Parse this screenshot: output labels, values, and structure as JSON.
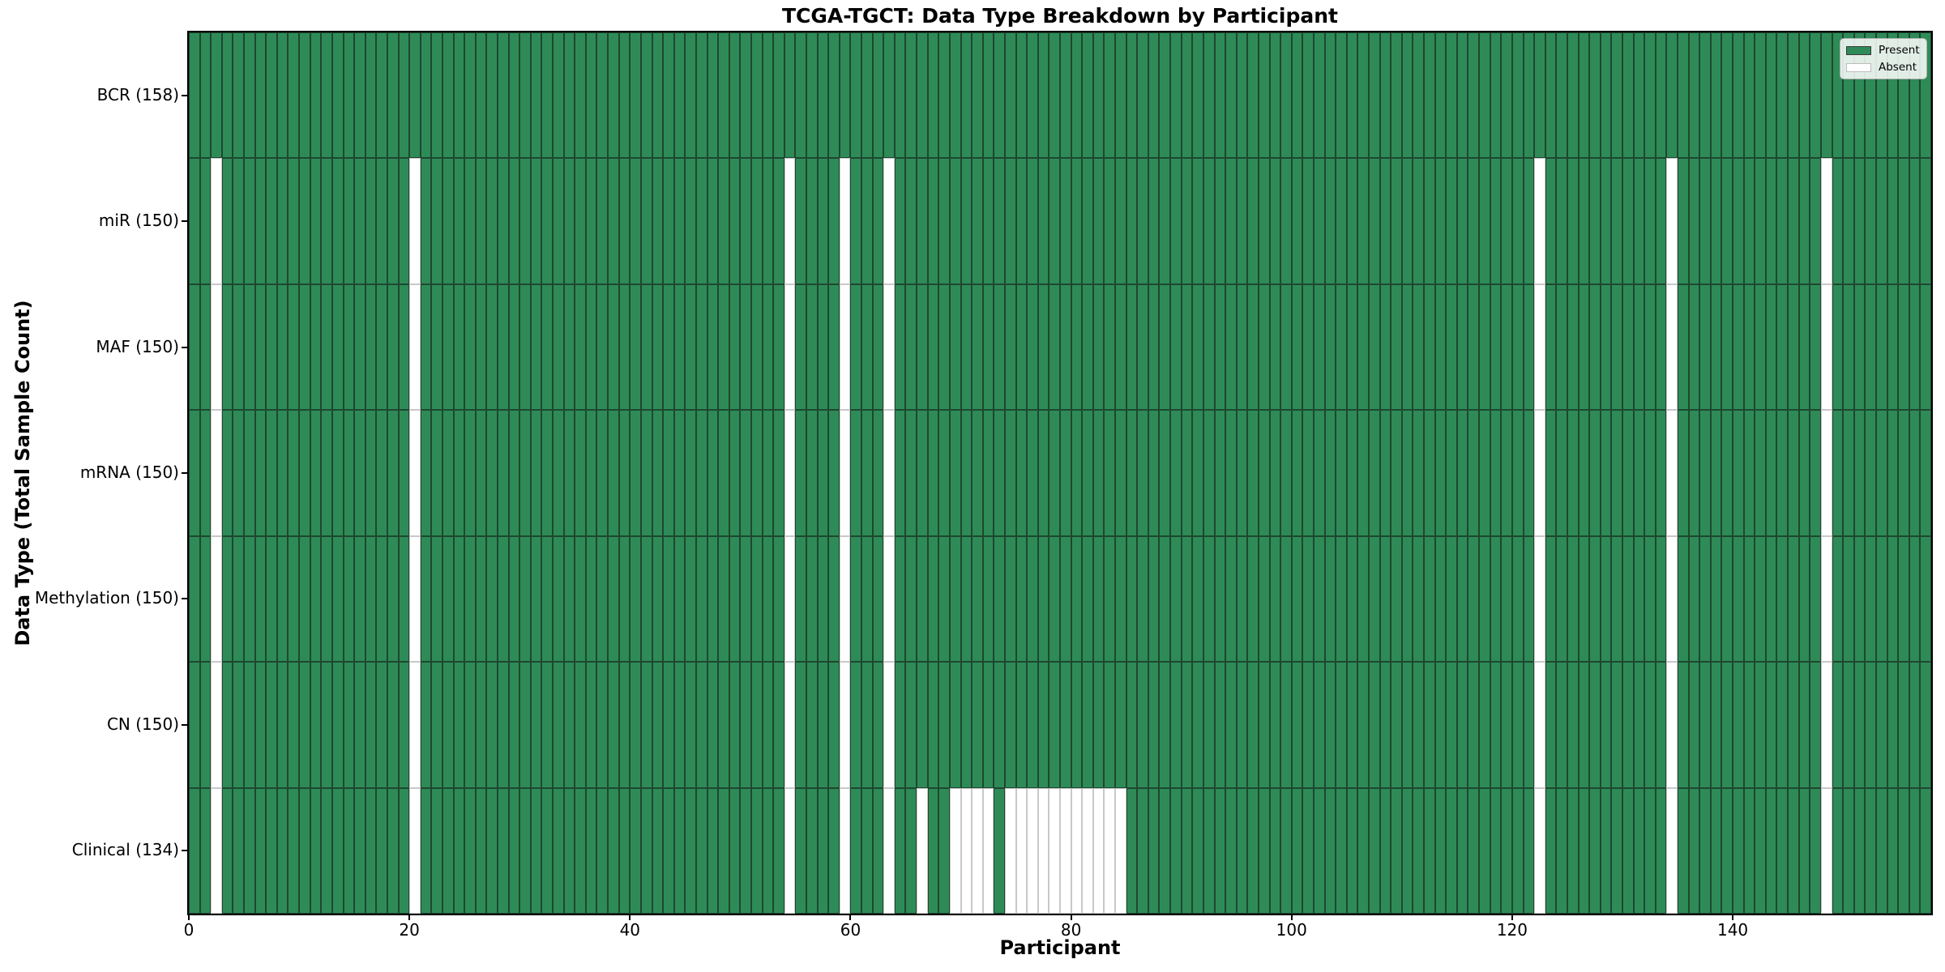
{
  "colors": {
    "present": "#2e8b57",
    "absent": "#ffffff",
    "present_edge": "#1e4730",
    "absent_edge": "#c8c8c8",
    "spine": "#000000"
  },
  "chart_data": {
    "type": "heatmap",
    "title": "TCGA-TGCT: Data Type Breakdown by Participant",
    "xlabel": "Participant",
    "ylabel": "Data Type (Total Sample Count)",
    "x_range": [
      0,
      158
    ],
    "n_participants": 158,
    "x_ticks": [
      0,
      20,
      40,
      60,
      80,
      100,
      120,
      140
    ],
    "grid": false,
    "legend": {
      "position": "upper right",
      "present_label": "Present",
      "absent_label": "Absent"
    },
    "rows": [
      {
        "label": "BCR (158)",
        "total_samples": 158,
        "absent": []
      },
      {
        "label": "miR (150)",
        "total_samples": 150,
        "absent": [
          2,
          20,
          54,
          59,
          63,
          122,
          134,
          148
        ]
      },
      {
        "label": "MAF (150)",
        "total_samples": 150,
        "absent": [
          2,
          20,
          54,
          59,
          63,
          122,
          134,
          148
        ]
      },
      {
        "label": "mRNA (150)",
        "total_samples": 150,
        "absent": [
          2,
          20,
          54,
          59,
          63,
          122,
          134,
          148
        ]
      },
      {
        "label": "Methylation (150)",
        "total_samples": 150,
        "absent": [
          2,
          20,
          54,
          59,
          63,
          122,
          134,
          148
        ]
      },
      {
        "label": "CN (150)",
        "total_samples": 150,
        "absent": [
          2,
          20,
          54,
          59,
          63,
          122,
          134,
          148
        ]
      },
      {
        "label": "Clinical (134)",
        "total_samples": 134,
        "absent": [
          2,
          20,
          54,
          59,
          63,
          66,
          69,
          70,
          71,
          72,
          74,
          75,
          76,
          77,
          78,
          79,
          80,
          81,
          82,
          83,
          84,
          122,
          134,
          148
        ]
      }
    ]
  }
}
